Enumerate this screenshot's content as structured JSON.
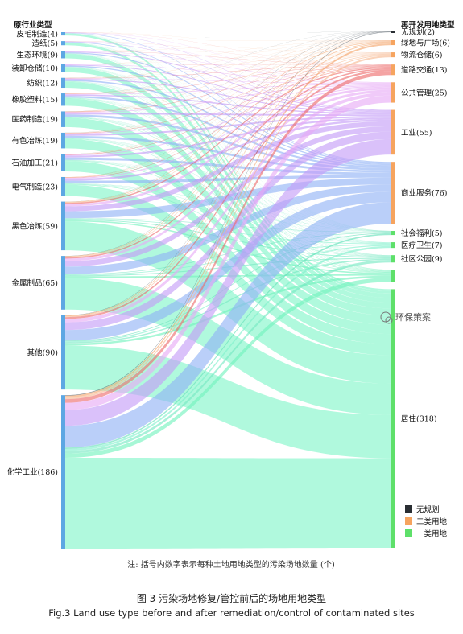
{
  "chart_data": {
    "type": "sankey",
    "left_header": "原行业类型",
    "right_header": "再开发用地类型",
    "left_nodes": [
      {
        "label": "皮毛制造(4)",
        "value": 4
      },
      {
        "label": "造纸(5)",
        "value": 5
      },
      {
        "label": "生态环境(9)",
        "value": 9
      },
      {
        "label": "装卸仓储(10)",
        "value": 10
      },
      {
        "label": "纺织(12)",
        "value": 12
      },
      {
        "label": "橡胶塑料(15)",
        "value": 15
      },
      {
        "label": "医药制造(19)",
        "value": 19
      },
      {
        "label": "有色冶炼(19)",
        "value": 19
      },
      {
        "label": "石油加工(21)",
        "value": 21
      },
      {
        "label": "电气制造(23)",
        "value": 23
      },
      {
        "label": "黑色冶炼(59)",
        "value": 59
      },
      {
        "label": "金属制品(65)",
        "value": 65
      },
      {
        "label": "其他(90)",
        "value": 90
      },
      {
        "label": "化学工业(186)",
        "value": 186
      }
    ],
    "right_nodes": [
      {
        "label": "无规划(2)",
        "value": 2,
        "category": "无规划",
        "color": "#2a2e33"
      },
      {
        "label": "绿地与广场(6)",
        "value": 6,
        "category": "二类用地",
        "color": "#f6a45f"
      },
      {
        "label": "物流仓储(6)",
        "value": 6,
        "category": "二类用地",
        "color": "#f6a45f"
      },
      {
        "label": "道路交通(13)",
        "value": 13,
        "category": "二类用地",
        "color": "#f6a45f"
      },
      {
        "label": "公共管理(25)",
        "value": 25,
        "category": "二类用地",
        "color": "#f6a45f"
      },
      {
        "label": "工业(55)",
        "value": 55,
        "category": "二类用地",
        "color": "#f6a45f"
      },
      {
        "label": "商业服务(76)",
        "value": 76,
        "category": "二类用地",
        "color": "#f6a45f"
      },
      {
        "label": "社会福利(5)",
        "value": 5,
        "category": "一类用地",
        "color": "#5ee06a"
      },
      {
        "label": "医疗卫生(7)",
        "value": 7,
        "category": "一类用地",
        "color": "#5ee06a"
      },
      {
        "label": "社区公园(9)",
        "value": 9,
        "category": "一类用地",
        "color": "#5ee06a"
      },
      {
        "label": "",
        "value": 15,
        "category": "一类用地",
        "color": "#5ee06a"
      },
      {
        "label": "居住(318)",
        "value": 318,
        "category": "一类用地",
        "color": "#5ee06a"
      }
    ],
    "link_colors": [
      "#4a5560",
      "#f3a46b",
      "#f7b88f",
      "#ee6b6b",
      "#e6a9f5",
      "#c39bf7",
      "#8fb1f6",
      "#62e0b8",
      "#7ef0cb",
      "#74e8c2",
      "#71f2bd",
      "#7ff5c8"
    ],
    "legend": [
      {
        "label": "无规划",
        "color": "#2a2e33"
      },
      {
        "label": "二类用地",
        "color": "#f6a45f"
      },
      {
        "label": "一类用地",
        "color": "#5ee06a"
      }
    ],
    "note": "注: 括号内数字表示每种土地用地类型的污染场地数量 (个)"
  },
  "watermark": "环保策案",
  "caption_cn": "图 3 污染场地修复/管控前后的场地用地类型",
  "caption_en": "Fig.3 Land use type before and after remediation/control of contaminated sites"
}
